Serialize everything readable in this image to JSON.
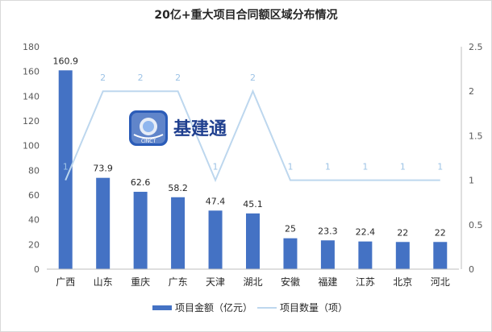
{
  "chart_data": {
    "type": "bar",
    "title": "20亿+重大项目合同额区域分布情况",
    "categories": [
      "广西",
      "山东",
      "重庆",
      "广东",
      "天津",
      "湖北",
      "安徽",
      "福建",
      "江苏",
      "北京",
      "河北"
    ],
    "series": [
      {
        "name": "项目金额（亿元）",
        "type": "bar",
        "axis": "left",
        "values": [
          160.9,
          73.9,
          62.6,
          58.2,
          47.4,
          45.1,
          25,
          23.3,
          22.4,
          22,
          22
        ],
        "labels": [
          "160.9",
          "73.9",
          "62.6",
          "58.2",
          "47.4",
          "45.1",
          "25",
          "23.3",
          "22.4",
          "22",
          "22"
        ],
        "color": "#4472c4"
      },
      {
        "name": "项目数量（项）",
        "type": "line",
        "axis": "right",
        "values": [
          1,
          2,
          2,
          2,
          1,
          2,
          1,
          1,
          1,
          1,
          1
        ],
        "labels": [
          "1",
          "2",
          "2",
          "2",
          "1",
          "2",
          "1",
          "1",
          "1",
          "1",
          "1"
        ],
        "color": "#bdd7ee"
      }
    ],
    "y_left": {
      "ylim": [
        0,
        180
      ],
      "ticks": [
        0,
        20,
        40,
        60,
        80,
        100,
        120,
        140,
        160,
        180
      ],
      "tick_labels": [
        "0",
        "20",
        "40",
        "60",
        "80",
        "100",
        "120",
        "140",
        "160",
        "180"
      ]
    },
    "y_right": {
      "ylim": [
        0,
        2.5
      ],
      "ticks": [
        0,
        0.5,
        1,
        1.5,
        2,
        2.5
      ],
      "tick_labels": [
        "0",
        "0.5",
        "1",
        "1.5",
        "2",
        "2.5"
      ]
    },
    "legend_position": "bottom",
    "grid": false
  },
  "watermark": {
    "text": "基建通",
    "logo_text": "CINCT"
  }
}
